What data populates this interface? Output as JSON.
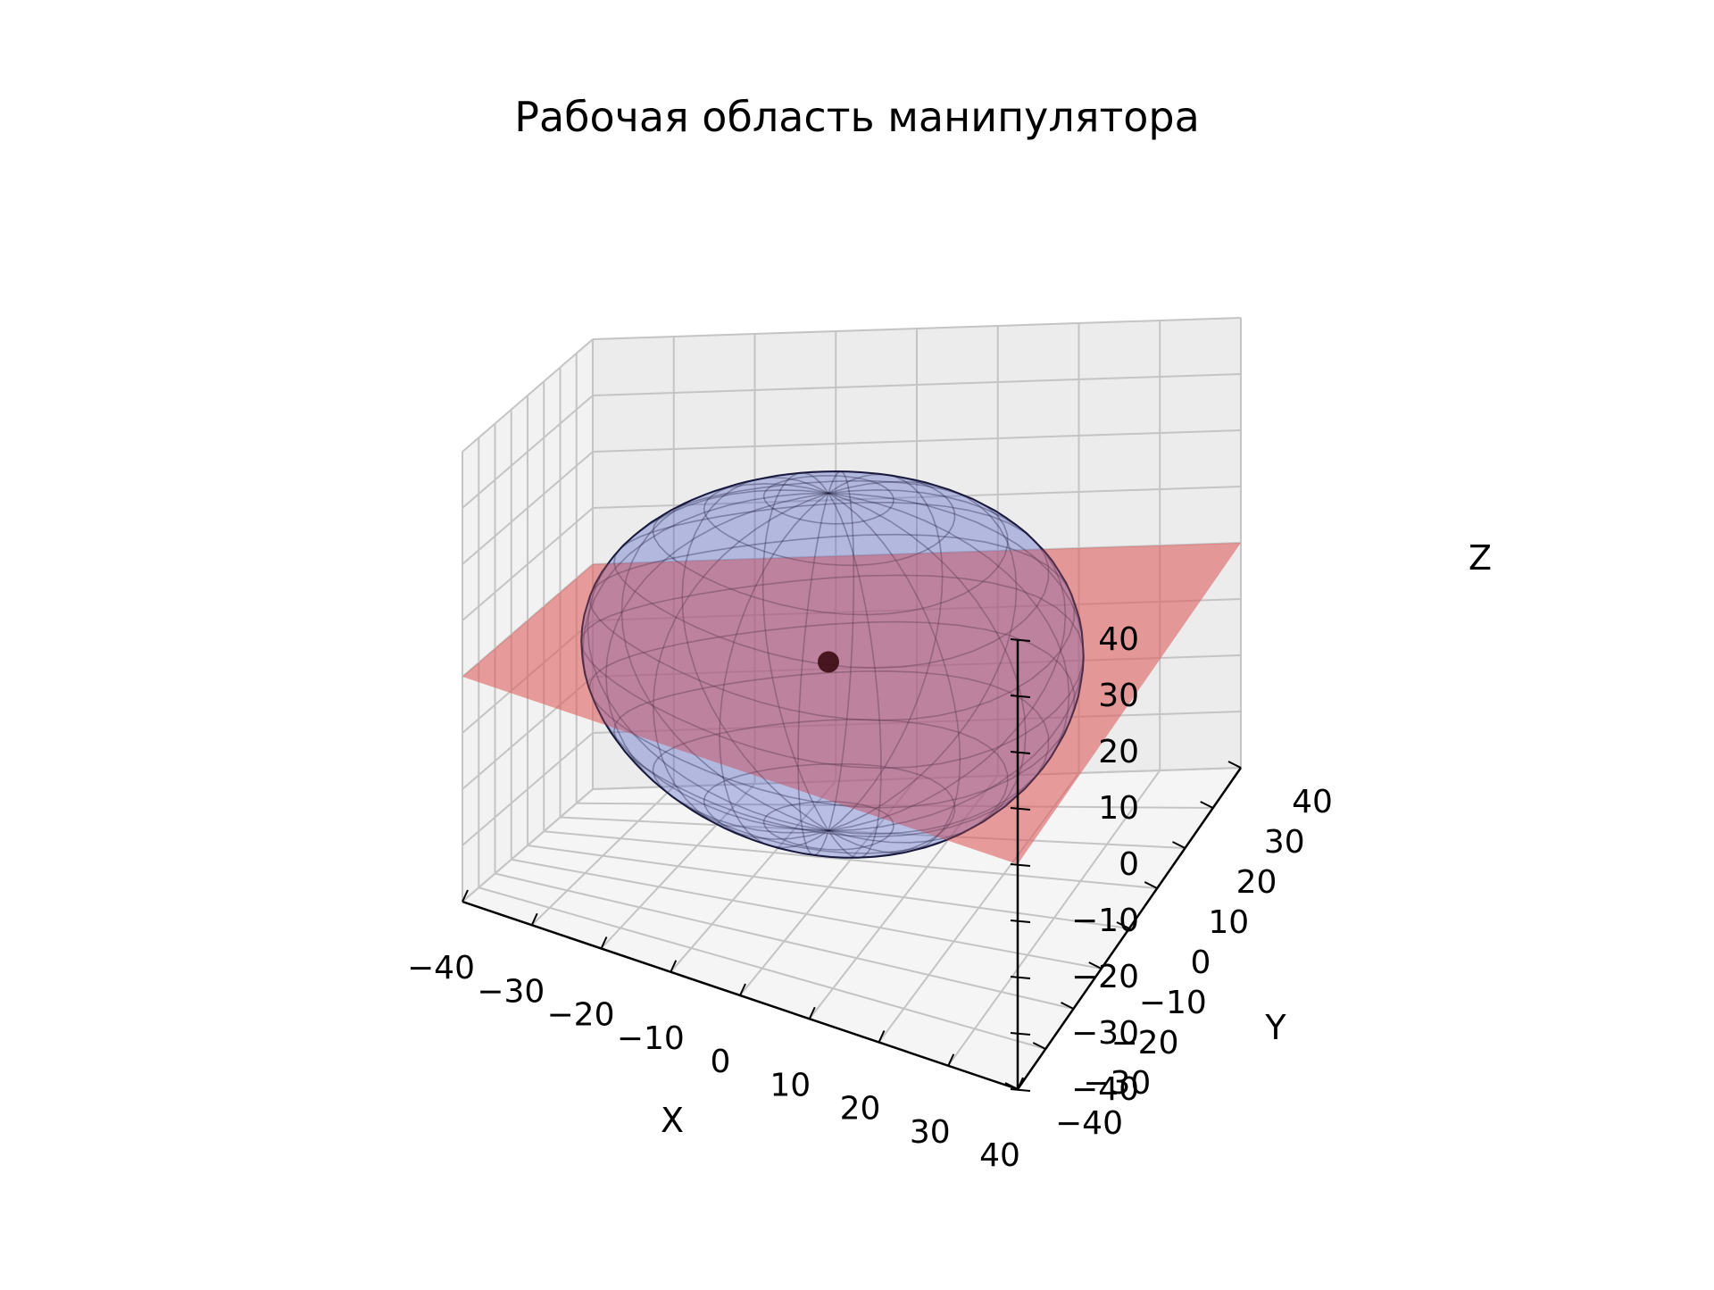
{
  "chart_data": {
    "type": "surface3d",
    "title": "Рабочая область манипулятора",
    "xlabel": "X",
    "ylabel": "Y",
    "zlabel": "Z",
    "xlim": [
      -40,
      40
    ],
    "ylim": [
      -40,
      40
    ],
    "zlim": [
      -40,
      40
    ],
    "x_ticks": [
      "−40",
      "−30",
      "−20",
      "−10",
      "0",
      "10",
      "20",
      "30",
      "40"
    ],
    "y_ticks": [
      "−40",
      "−30",
      "−20",
      "−10",
      "0",
      "10",
      "20",
      "30",
      "40"
    ],
    "z_ticks": [
      "−40",
      "−30",
      "−20",
      "−10",
      "0",
      "10",
      "20",
      "30",
      "40"
    ],
    "grid": true,
    "surfaces": [
      {
        "kind": "workspace-ellipsoid",
        "center": [
          0,
          0,
          0
        ],
        "radii": [
          32,
          32,
          30
        ],
        "color": "#4a58c8",
        "alpha": 0.35
      },
      {
        "kind": "plane",
        "z": 0,
        "x_range": [
          -40,
          40
        ],
        "y_range": [
          -40,
          40
        ],
        "color": "#e06060",
        "alpha": 0.45
      }
    ],
    "points": [
      {
        "kind": "origin-marker",
        "x": 0,
        "y": 0,
        "z": 0,
        "color": "#3a0a12"
      }
    ]
  }
}
